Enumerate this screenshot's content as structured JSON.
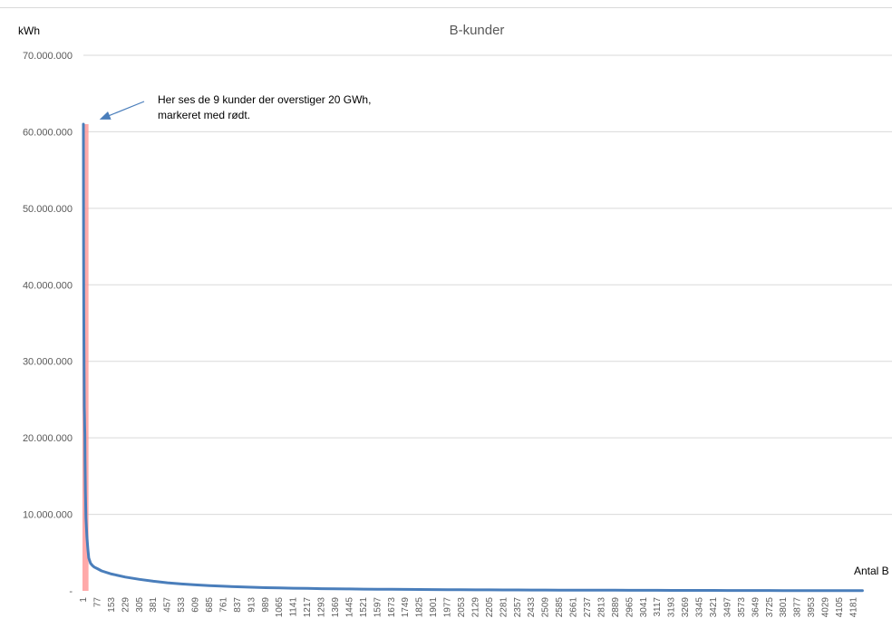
{
  "chart_data": {
    "type": "line",
    "title": "B-kunder",
    "ylabel": "kWh",
    "xlabel": "Antal B",
    "ylim": [
      0,
      70000000
    ],
    "y_tick_labels": [
      "-",
      "10.000.000",
      "20.000.000",
      "30.000.000",
      "40.000.000",
      "50.000.000",
      "60.000.000",
      "70.000.000"
    ],
    "x_tick_labels": [
      "1",
      "77",
      "153",
      "229",
      "305",
      "381",
      "457",
      "533",
      "609",
      "685",
      "761",
      "837",
      "913",
      "989",
      "1065",
      "1141",
      "1217",
      "1293",
      "1369",
      "1445",
      "1521",
      "1597",
      "1673",
      "1749",
      "1825",
      "1901",
      "1977",
      "2053",
      "2129",
      "2205",
      "2281",
      "2357",
      "2433",
      "2509",
      "2585",
      "2661",
      "2737",
      "2813",
      "2889",
      "2965",
      "3041",
      "3117",
      "3193",
      "3269",
      "3345",
      "3421",
      "3497",
      "3573",
      "3649",
      "3725",
      "3801",
      "3877",
      "3953",
      "4029",
      "4105",
      "4181"
    ],
    "grid": true,
    "series": [
      {
        "color": "#4a7ebb",
        "x": [
          1,
          2,
          3,
          4,
          5,
          6,
          7,
          8,
          9,
          10,
          12,
          15,
          20,
          25,
          30,
          40,
          50,
          60,
          77,
          100,
          153,
          229,
          305,
          381,
          457,
          533,
          609,
          685,
          761,
          837,
          913,
          989,
          1065,
          1141,
          1217,
          1293,
          1369,
          1445,
          1521,
          1597,
          1673,
          1749,
          1825,
          1901,
          1977,
          2053,
          2129,
          2205,
          2281,
          2357,
          2433,
          2509,
          2585,
          2661,
          2737,
          2813,
          2889,
          2965,
          3041,
          3117,
          3193,
          3269,
          3345,
          3421,
          3497,
          3573,
          3649,
          3725,
          3801,
          3877,
          3953,
          4029,
          4105,
          4181,
          4230
        ],
        "values": [
          61000000,
          45000000,
          37000000,
          32000000,
          28000000,
          24000000,
          23000000,
          21500000,
          20500000,
          17000000,
          13000000,
          9500000,
          7000000,
          5500000,
          4300000,
          3600000,
          3300000,
          3100000,
          2900000,
          2600000,
          2200000,
          1800000,
          1500000,
          1250000,
          1050000,
          900000,
          780000,
          680000,
          600000,
          530000,
          470000,
          420000,
          380000,
          345000,
          315000,
          290000,
          265000,
          245000,
          228000,
          212000,
          198000,
          185000,
          173000,
          162000,
          152000,
          143000,
          135000,
          127000,
          120000,
          113000,
          107000,
          101000,
          96000,
          91000,
          86000,
          82000,
          78000,
          74000,
          70000,
          66000,
          63000,
          60000,
          57000,
          54000,
          51000,
          48000,
          45000,
          42000,
          39000,
          36000,
          33000,
          30000,
          27000,
          24000,
          22000
        ]
      }
    ],
    "highlight": {
      "x_range": [
        1,
        9
      ],
      "color": "#ff9a9a"
    },
    "annotation": {
      "lines": [
        "Her ses de 9 kunder der overstiger 20 GWh,",
        "markeret med rødt."
      ],
      "arrow_color": "#4a7ebb",
      "x": 9,
      "y": 61000000
    }
  }
}
